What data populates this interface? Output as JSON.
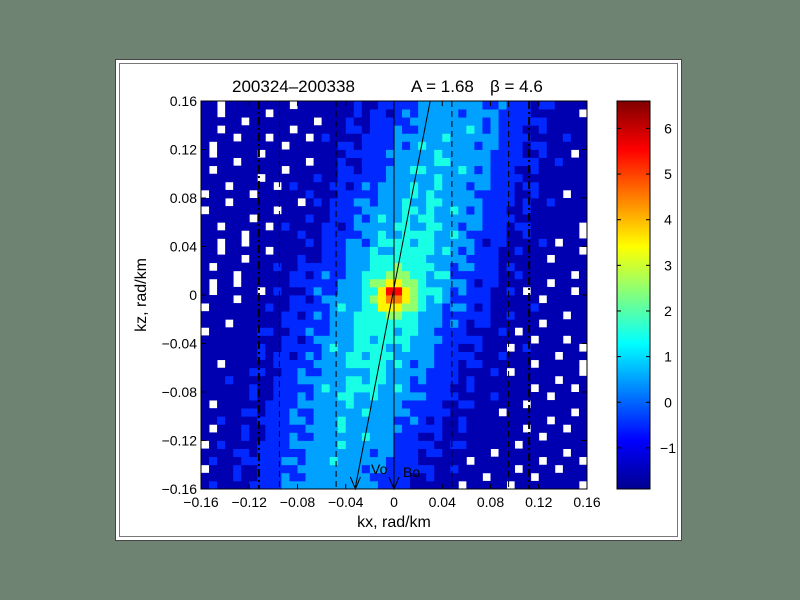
{
  "chart_data": {
    "type": "heatmap",
    "title": "200324–200338",
    "title_param_A": "A = 1.68",
    "title_param_beta": "β = 4.6",
    "xlabel": "kx, rad/km",
    "ylabel": "kz, rad/km",
    "xlim": [
      -0.16,
      0.16
    ],
    "ylim": [
      -0.16,
      0.16
    ],
    "x_ticks": [
      "−0.16",
      "−0.12",
      "−0.08",
      "−0.04",
      "0",
      "0.04",
      "0.08",
      "0.12",
      "0.16"
    ],
    "y_ticks": [
      "0.16",
      "0.12",
      "0.08",
      "0.04",
      "0",
      "−0.04",
      "−0.08",
      "−0.12",
      "−0.16"
    ],
    "colorbar": {
      "min": -1.9,
      "max": 6.6,
      "ticks": [
        "6",
        "5",
        "4",
        "3",
        "2",
        "1",
        "0",
        "−1"
      ],
      "tick_values": [
        6,
        5,
        4,
        3,
        2,
        1,
        0,
        -1
      ],
      "colormap": "jet"
    },
    "contour_levels": [
      -1,
      0,
      1,
      2,
      3,
      4,
      5,
      6
    ],
    "peak": {
      "kx": 0.0,
      "kz": 0.0,
      "value": 6.6
    },
    "ridge_slope_kz_per_kx": 3.0,
    "vertical_lines": [
      {
        "x": -0.112,
        "style": "dash-dot"
      },
      {
        "x": -0.095,
        "style": "dashed"
      },
      {
        "x": -0.048,
        "style": "dashed"
      },
      {
        "x": 0.048,
        "style": "dashed"
      },
      {
        "x": 0.095,
        "style": "dashed"
      },
      {
        "x": 0.112,
        "style": "dash-dot"
      },
      {
        "x": 0.0,
        "style": "solid"
      }
    ],
    "annotations": [
      {
        "label": "Vo",
        "direction_line": {
          "from": [
            -0.032,
            -0.16
          ],
          "to": [
            0.03,
            0.16
          ]
        }
      },
      {
        "label": "Bo",
        "direction_line": {
          "from": [
            0.0,
            -0.16
          ],
          "to": [
            0.0,
            0.16
          ]
        }
      }
    ]
  },
  "colors": {
    "background": "#6e8372",
    "frame": "#ffffff",
    "outside_contours": "#ffffff"
  }
}
